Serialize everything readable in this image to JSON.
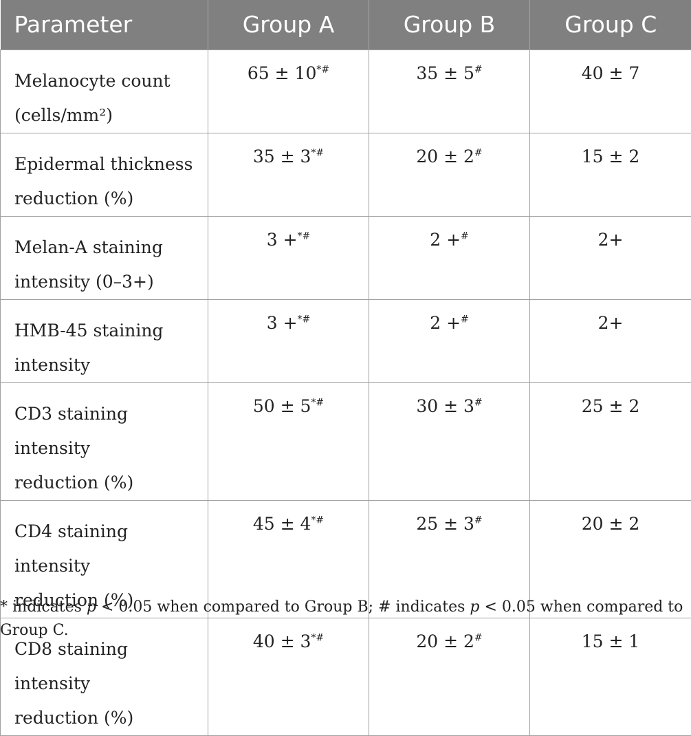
{
  "table": {
    "headers": [
      "Parameter",
      "Group A",
      "Group B",
      "Group C"
    ],
    "rows": [
      {
        "param_lines": [
          "Melanocyte count",
          "(cells/mm²)"
        ],
        "a": "65 ± 10",
        "a_sup": "*#",
        "b": "35 ± 5",
        "b_sup": "#",
        "c": "40 ± 7"
      },
      {
        "param_lines": [
          "Epidermal thickness",
          "reduction (%)"
        ],
        "a": "35 ± 3",
        "a_sup": "*#",
        "b": "20 ± 2",
        "b_sup": "#",
        "c": "15 ± 2"
      },
      {
        "param_lines": [
          "Melan-A staining",
          "intensity (0–3+)"
        ],
        "a": "3 +",
        "a_sup": "*#",
        "b": "2 +",
        "b_sup": "#",
        "c": "2+"
      },
      {
        "param_lines": [
          "HMB-45 staining",
          "intensity"
        ],
        "a": "3 +",
        "a_sup": "*#",
        "b": "2 +",
        "b_sup": "#",
        "c": "2+"
      },
      {
        "param_lines": [
          "CD3 staining intensity",
          "reduction (%)"
        ],
        "a": "50 ± 5",
        "a_sup": "*#",
        "b": "30 ± 3",
        "b_sup": "#",
        "c": "25 ± 2"
      },
      {
        "param_lines": [
          "CD4 staining intensity",
          "reduction (%)"
        ],
        "a": "45 ± 4",
        "a_sup": "*#",
        "b": "25 ± 3",
        "b_sup": "#",
        "c": "20 ± 2"
      },
      {
        "param_lines": [
          "CD8 staining intensity",
          "reduction (%)"
        ],
        "a": "40 ± 3",
        "a_sup": "*#",
        "b": "20 ± 2",
        "b_sup": "#",
        "c": "15 ± 1"
      }
    ]
  },
  "footnote": {
    "part1": "* indicates ",
    "p1": "p",
    "part2": " < 0.05 when compared to Group B; # indicates ",
    "p2": "p",
    "part3": " < 0.05 when compared to Group C."
  },
  "colors": {
    "header_bg": "#808080",
    "header_text": "#ffffff",
    "grid": "#a0a0a0"
  }
}
